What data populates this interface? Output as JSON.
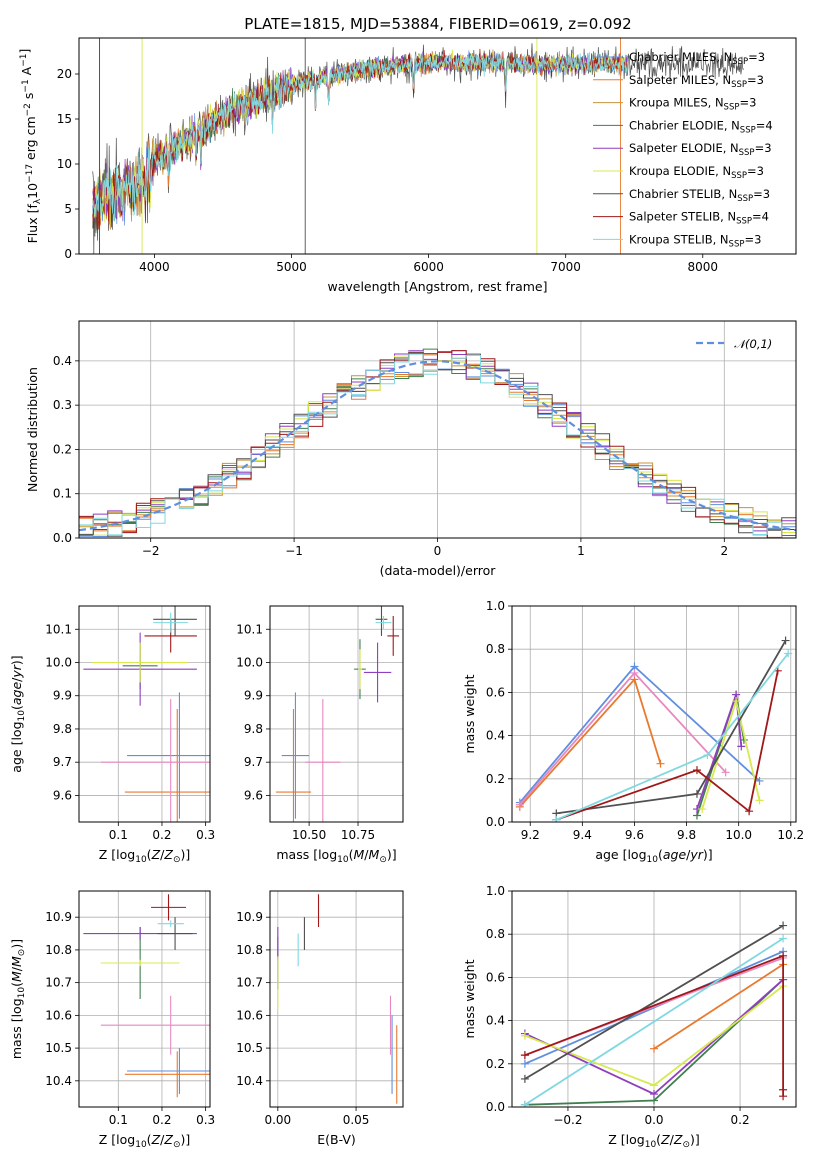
{
  "title": "PLATE=1815, MJD=53884, FIBERID=0619, z=0.092",
  "colors": [
    "#5f8fdf",
    "#e87a30",
    "#c8943a",
    "#3f7f4f",
    "#8f3fbf",
    "#d8e84f",
    "#505050",
    "#a01818",
    "#80d8e0",
    "#e888c0"
  ],
  "models": [
    {
      "label": "Chabrier MILES, N_SSP=3",
      "base": "Chabrier MILES, N",
      "sub": "SSP",
      "tail": "=3",
      "color": "#5f8fdf"
    },
    {
      "label": "Salpeter MILES, N_SSP=3",
      "base": "Salpeter MILES, N",
      "sub": "SSP",
      "tail": "=3",
      "color": "#e87a30"
    },
    {
      "label": "Kroupa MILES, N_SSP=3",
      "base": "Kroupa MILES, N",
      "sub": "SSP",
      "tail": "=3",
      "color": "#c8943a"
    },
    {
      "label": "Chabrier ELODIE, N_SSP=4",
      "base": "Chabrier ELODIE, N",
      "sub": "SSP",
      "tail": "=4",
      "color": "#3f7f4f"
    },
    {
      "label": "Salpeter ELODIE, N_SSP=3",
      "base": "Salpeter ELODIE, N",
      "sub": "SSP",
      "tail": "=3",
      "color": "#8f3fbf"
    },
    {
      "label": "Kroupa ELODIE, N_SSP=3",
      "base": "Kroupa ELODIE, N",
      "sub": "SSP",
      "tail": "=3",
      "color": "#d8e84f"
    },
    {
      "label": "Chabrier STELIB, N_SSP=3",
      "base": "Chabrier STELIB, N",
      "sub": "SSP",
      "tail": "=3",
      "color": "#505050"
    },
    {
      "label": "Salpeter STELIB, N_SSP=4",
      "base": "Salpeter STELIB, N",
      "sub": "SSP",
      "tail": "=4",
      "color": "#a01818"
    },
    {
      "label": "Kroupa STELIB, N_SSP=3",
      "base": "Kroupa STELIB, N",
      "sub": "SSP",
      "tail": "=3",
      "color": "#80d8e0"
    }
  ],
  "chart_data": [
    {
      "id": "spectrum",
      "type": "line",
      "xlabel": "wavelength [Angstrom, rest frame]",
      "ylabel": "Flux [f_λ 10^-17 erg cm^-2 s^-1 A^-1]",
      "xlim": [
        3450,
        8680
      ],
      "ylim": [
        0,
        24
      ],
      "xticks": [
        4000,
        5000,
        6000,
        7000,
        8000
      ],
      "yticks": [
        0,
        5,
        10,
        15,
        20
      ],
      "model_range": [
        3550,
        7450
      ],
      "data_range": [
        3550,
        8300
      ],
      "continuum": {
        "x": [
          3550,
          3700,
          3900,
          4000,
          4200,
          4500,
          5000,
          5500,
          6000,
          6500,
          7000,
          7450,
          8000,
          8300
        ],
        "y": [
          5.5,
          6.8,
          8.0,
          10.5,
          12.3,
          15.5,
          18.8,
          20.5,
          21.3,
          21.2,
          21.1,
          21.2,
          21.0,
          20.8
        ]
      },
      "grid": false,
      "legend": "top-right"
    },
    {
      "id": "residuals",
      "type": "line",
      "xlabel": "(data-model)/error",
      "ylabel": "Normed distribution",
      "xlim": [
        -2.5,
        2.5
      ],
      "ylim": [
        0,
        0.49
      ],
      "xticks": [
        -2,
        -1,
        0,
        1,
        2
      ],
      "yticks": [
        0,
        0.1,
        0.2,
        0.3,
        0.4
      ],
      "reference_label": "𝒩(0,1)",
      "bins": 50,
      "grid": true,
      "legend": "top-right"
    },
    {
      "id": "age_vs_Z",
      "type": "scatter",
      "xlabel": "Z [log10(Z/Z⊙)]",
      "ylabel": "age [log10(age/yr)]",
      "xlim": [
        0.01,
        0.31
      ],
      "ylim": [
        9.52,
        10.17
      ],
      "xticks": [
        0.1,
        0.2,
        0.3
      ],
      "yticks": [
        9.6,
        9.7,
        9.8,
        9.9,
        10.0,
        10.1
      ],
      "points": [
        {
          "c": 0,
          "x": 0.24,
          "xe": 0.12,
          "y": 9.72,
          "ye": 0.19
        },
        {
          "c": 1,
          "x": 0.235,
          "xe": 0.12,
          "y": 9.61,
          "ye": 0.25
        },
        {
          "c": 9,
          "x": 0.22,
          "xe": 0.16,
          "y": 9.7,
          "ye": 0.19
        },
        {
          "c": 3,
          "x": 0.15,
          "xe": 0.04,
          "y": 9.99,
          "ye": 0.07
        },
        {
          "c": 4,
          "x": 0.15,
          "xe": 0.13,
          "y": 9.98,
          "ye": 0.11
        },
        {
          "c": 5,
          "x": 0.15,
          "xe": 0.11,
          "y": 10.0,
          "ye": 0.06
        },
        {
          "c": 6,
          "x": 0.23,
          "xe": 0.05,
          "y": 10.13,
          "ye": 0.05
        },
        {
          "c": 7,
          "x": 0.22,
          "xe": 0.06,
          "y": 10.08,
          "ye": 0.05
        },
        {
          "c": 8,
          "x": 0.22,
          "xe": 0.04,
          "y": 10.12,
          "ye": 0.03
        }
      ]
    },
    {
      "id": "age_vs_mass",
      "type": "scatter",
      "xlabel": "mass [log10(M/M⊙)]",
      "ylabel": "",
      "xlim": [
        10.3,
        10.98
      ],
      "ylim": [
        9.52,
        10.17
      ],
      "xticks": [
        10.5,
        10.75
      ],
      "xtick_labels": [
        "10.50",
        "10.75"
      ],
      "yticks": [
        9.6,
        9.7,
        9.8,
        9.9,
        10.0,
        10.1
      ],
      "points": [
        {
          "c": 0,
          "x": 10.43,
          "xe": 0.07,
          "y": 9.72,
          "ye": 0.19
        },
        {
          "c": 1,
          "x": 10.42,
          "xe": 0.09,
          "y": 9.61,
          "ye": 0.25
        },
        {
          "c": 9,
          "x": 10.57,
          "xe": 0.09,
          "y": 9.7,
          "ye": 0.19
        },
        {
          "c": 3,
          "x": 10.76,
          "xe": 0.03,
          "y": 9.98,
          "ye": 0.09
        },
        {
          "c": 4,
          "x": 10.85,
          "xe": 0.07,
          "y": 9.97,
          "ye": 0.09
        },
        {
          "c": 5,
          "x": 10.76,
          "xe": 0.01,
          "y": 9.98,
          "ye": 0.06
        },
        {
          "c": 6,
          "x": 10.87,
          "xe": 0.03,
          "y": 10.13,
          "ye": 0.05
        },
        {
          "c": 7,
          "x": 10.93,
          "xe": 0.03,
          "y": 10.08,
          "ye": 0.06
        },
        {
          "c": 8,
          "x": 10.88,
          "xe": 0.04,
          "y": 10.12,
          "ye": 0.02
        }
      ]
    },
    {
      "id": "weight_vs_age",
      "type": "line",
      "xlabel": "age [log10(age/yr)]",
      "ylabel": "mass weight",
      "xlim": [
        9.13,
        10.22
      ],
      "ylim": [
        0,
        1
      ],
      "xticks": [
        9.2,
        9.4,
        9.6,
        9.8,
        10.0,
        10.2
      ],
      "yticks": [
        0,
        0.2,
        0.4,
        0.6,
        0.8,
        1.0
      ],
      "series": [
        {
          "c": 0,
          "x": [
            9.16,
            9.6,
            10.08
          ],
          "y": [
            0.09,
            0.72,
            0.19
          ]
        },
        {
          "c": 1,
          "x": [
            9.16,
            9.6,
            9.7
          ],
          "y": [
            0.07,
            0.66,
            0.27
          ]
        },
        {
          "c": 9,
          "x": [
            9.16,
            9.6,
            9.95
          ],
          "y": [
            0.08,
            0.69,
            0.23
          ]
        },
        {
          "c": 3,
          "x": [
            9.84,
            9.99,
            10.02
          ],
          "y": [
            0.03,
            0.59,
            0.38
          ]
        },
        {
          "c": 4,
          "x": [
            9.84,
            9.99,
            10.01
          ],
          "y": [
            0.06,
            0.59,
            0.35
          ]
        },
        {
          "c": 5,
          "x": [
            9.86,
            9.99,
            10.08
          ],
          "y": [
            0.06,
            0.56,
            0.1
          ]
        },
        {
          "c": 6,
          "x": [
            9.3,
            9.84,
            10.18
          ],
          "y": [
            0.04,
            0.13,
            0.84
          ]
        },
        {
          "c": 7,
          "x": [
            9.3,
            9.84,
            10.04,
            10.15
          ],
          "y": [
            0.01,
            0.24,
            0.05,
            0.7
          ]
        },
        {
          "c": 8,
          "x": [
            9.3,
            9.88,
            10.19
          ],
          "y": [
            0.01,
            0.31,
            0.78
          ]
        }
      ]
    },
    {
      "id": "mass_vs_Z",
      "type": "scatter",
      "xlabel": "Z [log10(Z/Z⊙)]",
      "ylabel": "mass [log10(M/M⊙)]",
      "xlim": [
        0.01,
        0.31
      ],
      "ylim": [
        10.32,
        10.98
      ],
      "xticks": [
        0.1,
        0.2,
        0.3
      ],
      "yticks": [
        10.4,
        10.5,
        10.6,
        10.7,
        10.8,
        10.9
      ],
      "points": [
        {
          "c": 0,
          "x": 0.24,
          "xe": 0.12,
          "y": 10.43,
          "ye": 0.07
        },
        {
          "c": 1,
          "x": 0.235,
          "xe": 0.12,
          "y": 10.42,
          "ye": 0.07
        },
        {
          "c": 9,
          "x": 0.22,
          "xe": 0.16,
          "y": 10.57,
          "ye": 0.09
        },
        {
          "c": 3,
          "x": 0.15,
          "xe": 0.04,
          "y": 10.76,
          "ye": 0.11
        },
        {
          "c": 4,
          "x": 0.15,
          "xe": 0.13,
          "y": 10.85,
          "ye": 0.02
        },
        {
          "c": 5,
          "x": 0.15,
          "xe": 0.09,
          "y": 10.76,
          "ye": 0.01
        },
        {
          "c": 6,
          "x": 0.23,
          "xe": 0.04,
          "y": 10.85,
          "ye": 0.05
        },
        {
          "c": 7,
          "x": 0.215,
          "xe": 0.04,
          "y": 10.93,
          "ye": 0.04
        },
        {
          "c": 8,
          "x": 0.22,
          "xe": 0.03,
          "y": 10.88,
          "ye": 0.01
        }
      ]
    },
    {
      "id": "mass_vs_ebv",
      "type": "scatter",
      "xlabel": "E(B-V)",
      "ylabel": "",
      "xlim": [
        -0.005,
        0.08
      ],
      "ylim": [
        10.32,
        10.98
      ],
      "xticks": [
        0,
        0.05
      ],
      "xtick_labels": [
        "0.00",
        "0.05"
      ],
      "yticks": [
        10.4,
        10.5,
        10.6,
        10.7,
        10.8,
        10.9
      ],
      "points": [
        {
          "c": 0,
          "x": 0.073,
          "xe": 0,
          "y": 10.48,
          "ye": 0.12
        },
        {
          "c": 1,
          "x": 0.076,
          "xe": 0,
          "y": 10.45,
          "ye": 0.12
        },
        {
          "c": 9,
          "x": 0.072,
          "xe": 0,
          "y": 10.57,
          "ye": 0.09
        },
        {
          "c": 3,
          "x": 0.0,
          "xe": 0,
          "y": 10.76,
          "ye": 0.08
        },
        {
          "c": 4,
          "x": 0.0,
          "xe": 0,
          "y": 10.82,
          "ye": 0.05
        },
        {
          "c": 5,
          "x": 0.0,
          "xe": 0,
          "y": 10.7,
          "ye": 0.08
        },
        {
          "c": 6,
          "x": 0.017,
          "xe": 0,
          "y": 10.85,
          "ye": 0.05
        },
        {
          "c": 7,
          "x": 0.026,
          "xe": 0,
          "y": 10.92,
          "ye": 0.05
        },
        {
          "c": 8,
          "x": 0.013,
          "xe": 0,
          "y": 10.8,
          "ye": 0.05
        }
      ]
    },
    {
      "id": "weight_vs_Z",
      "type": "line",
      "xlabel": "Z [log10(Z/Z⊙)]",
      "ylabel": "mass weight",
      "xlim": [
        -0.33,
        0.33
      ],
      "ylim": [
        0,
        1
      ],
      "xticks": [
        -0.2,
        0,
        0.2
      ],
      "xtick_labels": [
        "−0.2",
        "0.0",
        "0.2"
      ],
      "yticks": [
        0,
        0.2,
        0.4,
        0.6,
        0.8,
        1.0
      ],
      "series": [
        {
          "c": 0,
          "x": [
            -0.3,
            0.3
          ],
          "y": [
            0.2,
            0.72
          ]
        },
        {
          "c": 1,
          "x": [
            0,
            0.3
          ],
          "y": [
            0.27,
            0.66
          ]
        },
        {
          "c": 9,
          "x": [
            -0.3,
            0.3
          ],
          "y": [
            0.24,
            0.69
          ]
        },
        {
          "c": 3,
          "x": [
            -0.3,
            0,
            0.3
          ],
          "y": [
            0.01,
            0.03,
            0.59
          ]
        },
        {
          "c": 4,
          "x": [
            -0.3,
            0,
            0.3
          ],
          "y": [
            0.34,
            0.06,
            0.59
          ]
        },
        {
          "c": 5,
          "x": [
            -0.3,
            0,
            0.3
          ],
          "y": [
            0.33,
            0.1,
            0.56
          ]
        },
        {
          "c": 6,
          "x": [
            -0.3,
            0.3
          ],
          "y": [
            0.13,
            0.84
          ]
        },
        {
          "c": 7,
          "x": [
            -0.3,
            0.3,
            0.3,
            0.3
          ],
          "y": [
            0.24,
            0.7,
            0.05,
            0.08
          ]
        },
        {
          "c": 8,
          "x": [
            -0.3,
            0.3
          ],
          "y": [
            0.01,
            0.78
          ]
        }
      ]
    }
  ]
}
